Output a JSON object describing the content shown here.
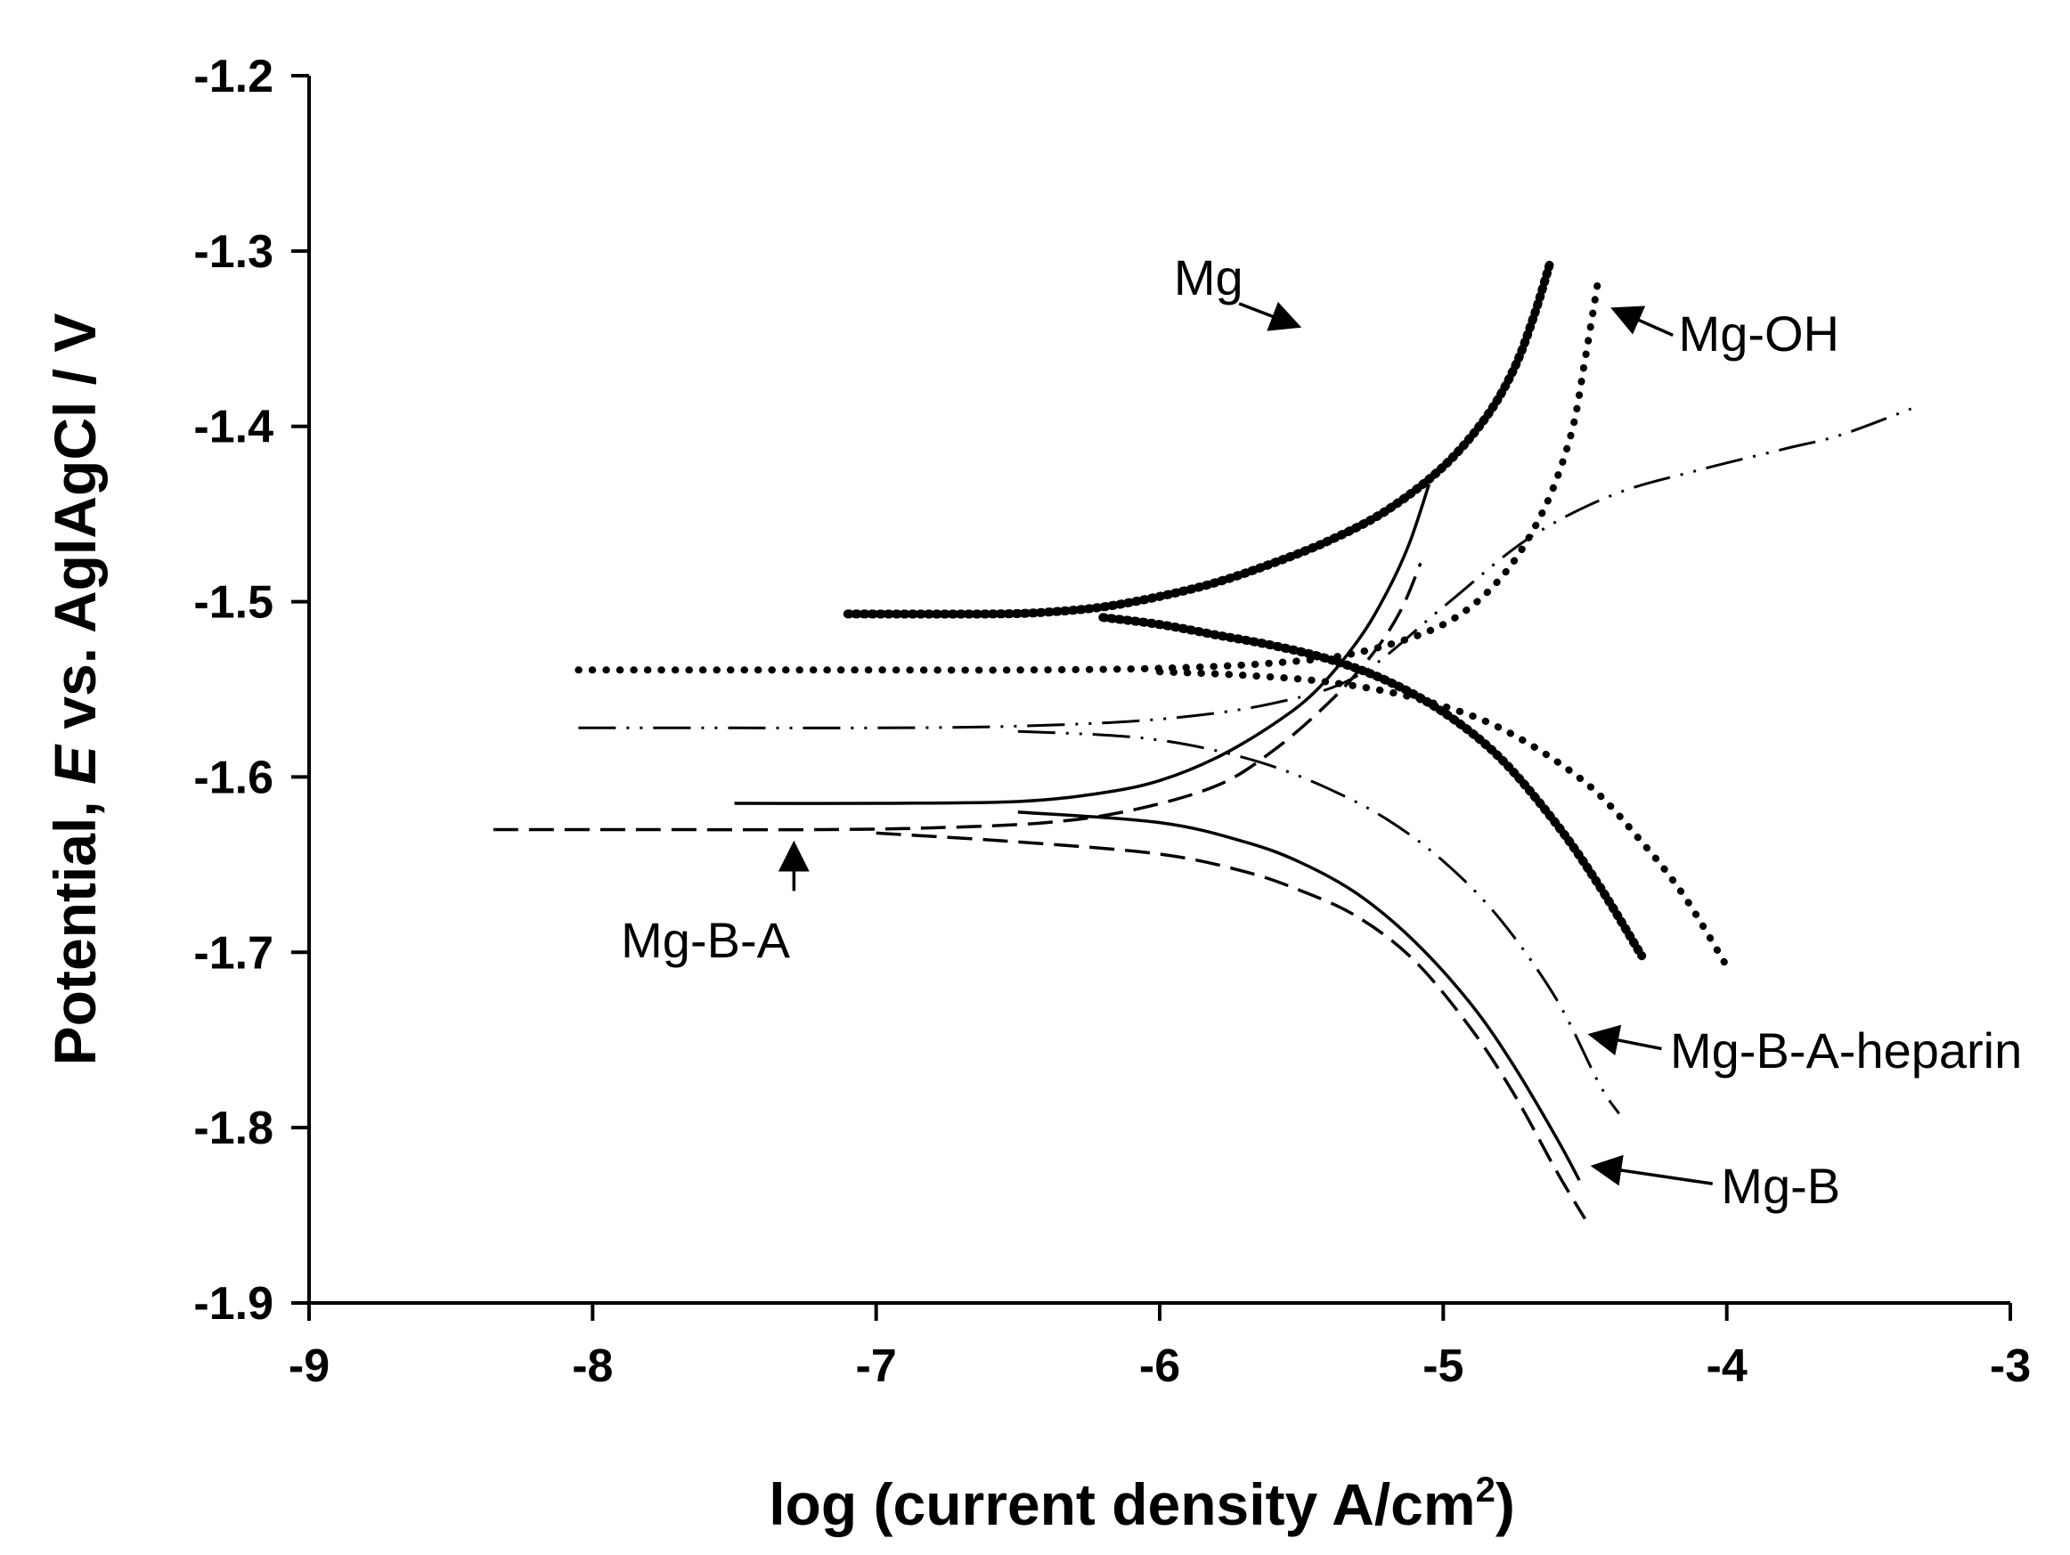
{
  "chart_data": {
    "type": "line",
    "title": "",
    "xlabel": "log (current density A/cm",
    "xlabel_sup": "2",
    "xlabel_close": ")",
    "ylabel_prefix": "Potential, ",
    "ylabel_italic": "E",
    "ylabel_suffix": " vs. AgIAgCl / V",
    "xlim": [
      -9,
      -3
    ],
    "ylim": [
      -1.9,
      -1.2
    ],
    "xticks": [
      "-9",
      "-8",
      "-7",
      "-6",
      "-5",
      "-4",
      "-3"
    ],
    "yticks": [
      "-1.2",
      "-1.3",
      "-1.4",
      "-1.5",
      "-1.6",
      "-1.7",
      "-1.8",
      "-1.9"
    ],
    "grid": false,
    "series": [
      {
        "name": "Mg",
        "style": "heavy-dotted",
        "branches": [
          {
            "x": [
              -7.1,
              -6.6,
              -6.4,
              -6.2,
              -6.0,
              -5.8,
              -5.6,
              -5.4,
              -5.2,
              -5.0,
              -4.85,
              -4.75,
              -4.68,
              -4.62
            ],
            "y": [
              -1.507,
              -1.507,
              -1.506,
              -1.503,
              -1.497,
              -1.489,
              -1.478,
              -1.465,
              -1.448,
              -1.423,
              -1.395,
              -1.367,
              -1.337,
              -1.305
            ]
          },
          {
            "x": [
              -6.2,
              -6.0,
              -5.8,
              -5.6,
              -5.4,
              -5.2,
              -5.0,
              -4.8,
              -4.6,
              -4.45,
              -4.3
            ],
            "y": [
              -1.509,
              -1.513,
              -1.519,
              -1.525,
              -1.533,
              -1.545,
              -1.563,
              -1.589,
              -1.627,
              -1.662,
              -1.702
            ]
          }
        ]
      },
      {
        "name": "Mg-OH",
        "style": "dotted",
        "branches": [
          {
            "x": [
              -8.05,
              -7.5,
              -7.0,
              -6.5,
              -6.0,
              -5.6,
              -5.3,
              -5.0,
              -4.8,
              -4.65,
              -4.55,
              -4.5,
              -4.45
            ],
            "y": [
              -1.539,
              -1.539,
              -1.539,
              -1.539,
              -1.538,
              -1.535,
              -1.529,
              -1.513,
              -1.487,
              -1.449,
              -1.405,
              -1.362,
              -1.313
            ]
          },
          {
            "x": [
              -6.0,
              -5.7,
              -5.4,
              -5.1,
              -4.8,
              -4.5,
              -4.3,
              -4.15,
              -4.0
            ],
            "y": [
              -1.54,
              -1.542,
              -1.546,
              -1.555,
              -1.572,
              -1.603,
              -1.637,
              -1.668,
              -1.708
            ]
          }
        ]
      },
      {
        "name": "Mg-B-A-heparin",
        "style": "dash-dot",
        "branches": [
          {
            "x": [
              -8.05,
              -7.5,
              -7.0,
              -6.5,
              -6.0,
              -5.6,
              -5.3,
              -5.0,
              -4.7,
              -4.4,
              -4.1,
              -3.8,
              -3.6,
              -3.35
            ],
            "y": [
              -1.572,
              -1.572,
              -1.572,
              -1.571,
              -1.567,
              -1.558,
              -1.542,
              -1.503,
              -1.464,
              -1.439,
              -1.425,
              -1.413,
              -1.405,
              -1.39
            ]
          },
          {
            "x": [
              -6.5,
              -6.2,
              -6.0,
              -5.8,
              -5.6,
              -5.4,
              -5.2,
              -5.0,
              -4.8,
              -4.6,
              -4.45,
              -4.38
            ],
            "y": [
              -1.574,
              -1.576,
              -1.579,
              -1.585,
              -1.594,
              -1.607,
              -1.624,
              -1.648,
              -1.681,
              -1.727,
              -1.775,
              -1.792
            ]
          }
        ]
      },
      {
        "name": "Mg-B",
        "style": "solid",
        "branches": [
          {
            "x": [
              -7.5,
              -7.0,
              -6.5,
              -6.2,
              -6.0,
              -5.8,
              -5.6,
              -5.45,
              -5.3,
              -5.2,
              -5.12,
              -5.05
            ],
            "y": [
              -1.615,
              -1.615,
              -1.614,
              -1.609,
              -1.602,
              -1.589,
              -1.57,
              -1.551,
              -1.522,
              -1.495,
              -1.467,
              -1.433
            ]
          },
          {
            "x": [
              -6.5,
              -6.0,
              -5.7,
              -5.5,
              -5.3,
              -5.1,
              -4.9,
              -4.75,
              -4.6,
              -4.52
            ],
            "y": [
              -1.62,
              -1.626,
              -1.637,
              -1.649,
              -1.667,
              -1.694,
              -1.73,
              -1.765,
              -1.806,
              -1.83
            ]
          }
        ]
      },
      {
        "name": "Mg-B-A",
        "style": "dashed",
        "branches": [
          {
            "x": [
              -8.35,
              -7.8,
              -7.2,
              -6.8,
              -6.4,
              -6.1,
              -5.8,
              -5.6,
              -5.4,
              -5.25,
              -5.15,
              -5.08
            ],
            "y": [
              -1.63,
              -1.63,
              -1.63,
              -1.629,
              -1.626,
              -1.619,
              -1.605,
              -1.585,
              -1.557,
              -1.53,
              -1.505,
              -1.478
            ]
          },
          {
            "x": [
              -7.0,
              -6.5,
              -6.0,
              -5.7,
              -5.5,
              -5.3,
              -5.1,
              -4.9,
              -4.75,
              -4.6,
              -4.5
            ],
            "y": [
              -1.632,
              -1.637,
              -1.644,
              -1.654,
              -1.665,
              -1.68,
              -1.705,
              -1.744,
              -1.781,
              -1.825,
              -1.852
            ]
          }
        ]
      }
    ],
    "annotations": [
      {
        "text": "Mg",
        "label_x": -5.95,
        "label_y": -1.325,
        "arrow_from": [
          -5.72,
          -1.33
        ],
        "arrow_to": [
          -5.51,
          -1.343
        ]
      },
      {
        "text": "Mg-OH",
        "label_x": -4.17,
        "label_y": -1.357,
        "arrow_from": [
          -4.19,
          -1.348
        ],
        "arrow_to": [
          -4.4,
          -1.333
        ]
      },
      {
        "text": "Mg-B-A-heparin",
        "label_x": -4.2,
        "label_y": -1.766,
        "arrow_from": [
          -4.23,
          -1.755
        ],
        "arrow_to": [
          -4.48,
          -1.747
        ]
      },
      {
        "text": "Mg-B",
        "label_x": -4.02,
        "label_y": -1.843,
        "arrow_from": [
          -4.05,
          -1.832
        ],
        "arrow_to": [
          -4.47,
          -1.822
        ]
      },
      {
        "text": "Mg-B-A",
        "label_x": -7.9,
        "label_y": -1.703,
        "arrow_from": [
          -7.29,
          -1.665
        ],
        "arrow_to": [
          -7.29,
          -1.638
        ]
      }
    ]
  }
}
